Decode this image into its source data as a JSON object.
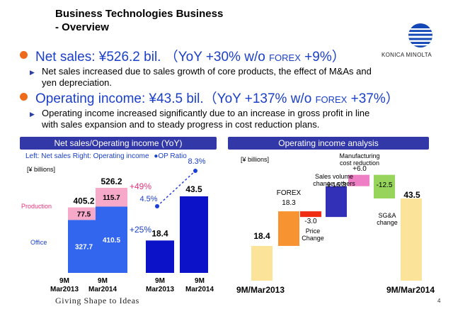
{
  "title_line1": "Business Technologies Business",
  "title_line2": "- Overview",
  "logo_text": "KONICA MINOLTA",
  "colors": {
    "accent_blue": "#1a3fc8",
    "header_bar": "#3238a8",
    "bullet": "#ef6b1c",
    "bar_blue": "#3366ee",
    "bar_pink": "#f7a9c9",
    "bar_navy": "#0b12c8",
    "pink_text": "#e6337a",
    "wf_yellow": "#fbe39a",
    "wf_orange": "#f79431",
    "wf_red": "#ef2d12",
    "wf_indigo": "#3330b8",
    "wf_pink": "#ee7fc5",
    "wf_green": "#96d45c"
  },
  "headline1": {
    "pre": "Net sales:  ¥526.2 bil. （YoY +30%  w/o ",
    "forex": "FOREX",
    "post": " +9%）"
  },
  "sub1": [
    "Net sales increased due to sales growth of core products, the effect of M&As and",
    "yen  depreciation."
  ],
  "headline2": {
    "pre": "Operating income:  ¥43.5 bil.（YoY +137% w/o ",
    "forex": "FOREX",
    "post": " +37%）"
  },
  "sub2": [
    "Operating income increased significantly due to an increase in gross profit in line",
    "with sales expansion and to steady progress in cost reduction plans."
  ],
  "left_panel": {
    "header": "Net sales/Operating income (YoY)",
    "legend_text": "Left: Net sales   Right: Operating income",
    "legend_op": "OP Ratio",
    "unit": "[¥ billions]",
    "production_label": "Production",
    "office_label": "Office"
  },
  "right_panel": {
    "header": "Operating income analysis",
    "unit": "[¥ billions]"
  },
  "chart_data": [
    {
      "type": "bar",
      "stacked": true,
      "categories": [
        "9M Mar2013",
        "9M Mar2014"
      ],
      "series": [
        {
          "name": "Office",
          "values": [
            327.7,
            410.5
          ]
        },
        {
          "name": "Production",
          "values": [
            77.5,
            115.7
          ]
        }
      ],
      "totals": [
        405.2,
        526.2
      ],
      "annotations": [
        "+49%",
        "+25%"
      ]
    },
    {
      "type": "bar",
      "categories": [
        "9M Mar2013",
        "9M Mar2014"
      ],
      "series": [
        {
          "name": "Operating income",
          "values": [
            18.4,
            43.5
          ]
        }
      ],
      "op_ratio": {
        "name": "OP Ratio",
        "values": [
          "4.5%",
          "8.3%"
        ]
      }
    },
    {
      "type": "bar",
      "waterfall": true,
      "categories": [
        "9M/Mar2013",
        "FOREX",
        "Price Change",
        "Sales volume change, others",
        "Manufacturing cost reduction",
        "SG&A change",
        "9M/Mar2014"
      ],
      "values": [
        18.4,
        18.3,
        -3.0,
        16.3,
        6.0,
        -12.5,
        43.5
      ],
      "value_labels": [
        "18.4",
        "18.3",
        "-3.0",
        "＋16.3",
        "+6.0",
        "-12.5",
        "43.5"
      ],
      "category_labels": [
        "9M/Mar2013",
        "FOREX",
        "Price\nChange",
        "Sales volume\nchange, others",
        "Manufacturing\ncost reduction",
        "SG&A\nchange",
        "9M/Mar2014"
      ]
    }
  ],
  "footer": "Giving Shape to Ideas",
  "page_number": "4"
}
